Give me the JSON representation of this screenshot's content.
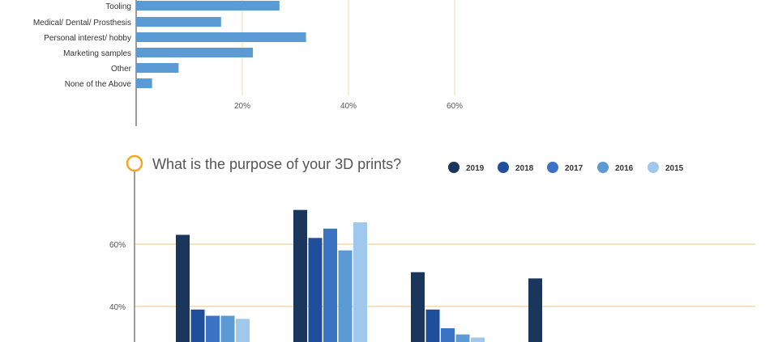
{
  "colors": {
    "bar_top": "#5b9bd5",
    "gridline": "#f3d9a8",
    "axis": "#7f7f7f",
    "title_ring": "#f5a623",
    "series": [
      "#1b365d",
      "#1f4e9a",
      "#3a72c4",
      "#5b9bd5",
      "#9fc8ec"
    ]
  },
  "chart_data": [
    {
      "type": "bar",
      "orientation": "horizontal",
      "categories": [
        "Tooling",
        "Medical/ Dental/ Prosthesis",
        "Personal interest/ hobby",
        "Marketing samples",
        "Other",
        "None of the Above"
      ],
      "values": [
        27,
        16,
        32,
        22,
        8,
        3
      ],
      "xticks": [
        "20%",
        "40%",
        "60%"
      ],
      "xtick_values": [
        20,
        40,
        60
      ],
      "xlim": [
        0,
        60
      ],
      "grid": true,
      "note": "top portion cropped"
    },
    {
      "type": "bar",
      "title": "What is the purpose of your 3D prints?",
      "series": [
        {
          "name": "2019",
          "values": [
            63,
            71,
            51,
            49
          ]
        },
        {
          "name": "2018",
          "values": [
            39,
            62,
            39,
            null
          ]
        },
        {
          "name": "2017",
          "values": [
            37,
            65,
            33,
            null
          ]
        },
        {
          "name": "2016",
          "values": [
            37,
            58,
            31,
            null
          ]
        },
        {
          "name": "2015",
          "values": [
            36,
            67,
            30,
            null
          ]
        }
      ],
      "yticks": [
        "40%",
        "60%"
      ],
      "ytick_values": [
        40,
        60
      ],
      "grid": true,
      "legend": "top-right",
      "note": "bottom portion cropped"
    }
  ]
}
